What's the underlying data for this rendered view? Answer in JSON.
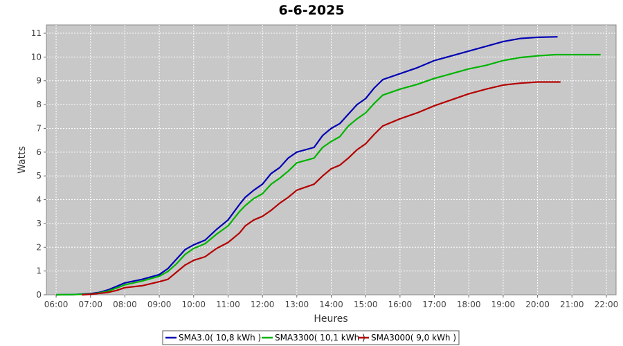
{
  "chart_data": {
    "type": "line",
    "title": "6-6-2025",
    "xlabel": "Heures",
    "ylabel": "Watts",
    "x_ticks": [
      "06:00",
      "07:00",
      "08:00",
      "09:00",
      "10:00",
      "11:00",
      "12:00",
      "13:00",
      "14:00",
      "15:00",
      "16:00",
      "17:00",
      "18:00",
      "19:00",
      "20:00",
      "21:00",
      "22:00"
    ],
    "x_range": [
      "05:43",
      "22:17"
    ],
    "y_ticks": [
      0,
      1,
      2,
      3,
      4,
      5,
      6,
      7,
      8,
      9,
      10,
      11
    ],
    "ylim": [
      0,
      11.35
    ],
    "grid": true,
    "legend_position": "bottom",
    "series": [
      {
        "name": "SMA3.0( 10,8 kWh )",
        "color": "#0000b4",
        "points": [
          [
            "06:00",
            0
          ],
          [
            "06:30",
            0.01
          ],
          [
            "07:00",
            0.05
          ],
          [
            "07:15",
            0.1
          ],
          [
            "07:30",
            0.2
          ],
          [
            "07:45",
            0.35
          ],
          [
            "08:00",
            0.5
          ],
          [
            "08:30",
            0.65
          ],
          [
            "09:00",
            0.85
          ],
          [
            "09:15",
            1.1
          ],
          [
            "09:30",
            1.5
          ],
          [
            "09:45",
            1.9
          ],
          [
            "10:00",
            2.1
          ],
          [
            "10:20",
            2.3
          ],
          [
            "10:40",
            2.75
          ],
          [
            "11:00",
            3.15
          ],
          [
            "11:20",
            3.8
          ],
          [
            "11:30",
            4.1
          ],
          [
            "11:45",
            4.4
          ],
          [
            "12:00",
            4.65
          ],
          [
            "12:15",
            5.1
          ],
          [
            "12:30",
            5.35
          ],
          [
            "12:45",
            5.75
          ],
          [
            "13:00",
            6.0
          ],
          [
            "13:30",
            6.2
          ],
          [
            "13:45",
            6.7
          ],
          [
            "14:00",
            7.0
          ],
          [
            "14:15",
            7.2
          ],
          [
            "14:30",
            7.6
          ],
          [
            "14:45",
            8.0
          ],
          [
            "15:00",
            8.25
          ],
          [
            "15:15",
            8.7
          ],
          [
            "15:30",
            9.05
          ],
          [
            "16:00",
            9.3
          ],
          [
            "16:30",
            9.55
          ],
          [
            "17:00",
            9.85
          ],
          [
            "17:30",
            10.05
          ],
          [
            "18:00",
            10.25
          ],
          [
            "18:30",
            10.45
          ],
          [
            "19:00",
            10.65
          ],
          [
            "19:30",
            10.78
          ],
          [
            "20:00",
            10.83
          ],
          [
            "20:35",
            10.85
          ]
        ]
      },
      {
        "name": "SMA3300( 10,1 kWh )",
        "color": "#00b400",
        "points": [
          [
            "06:00",
            0
          ],
          [
            "06:30",
            0.01
          ],
          [
            "07:00",
            0.03
          ],
          [
            "07:15",
            0.08
          ],
          [
            "07:30",
            0.15
          ],
          [
            "07:45",
            0.28
          ],
          [
            "08:00",
            0.42
          ],
          [
            "08:30",
            0.58
          ],
          [
            "09:00",
            0.78
          ],
          [
            "09:15",
            0.98
          ],
          [
            "09:30",
            1.3
          ],
          [
            "09:45",
            1.7
          ],
          [
            "10:00",
            1.95
          ],
          [
            "10:20",
            2.15
          ],
          [
            "10:40",
            2.55
          ],
          [
            "11:00",
            2.9
          ],
          [
            "11:20",
            3.5
          ],
          [
            "11:30",
            3.75
          ],
          [
            "11:45",
            4.05
          ],
          [
            "12:00",
            4.25
          ],
          [
            "12:15",
            4.65
          ],
          [
            "12:30",
            4.9
          ],
          [
            "12:45",
            5.2
          ],
          [
            "13:00",
            5.55
          ],
          [
            "13:30",
            5.75
          ],
          [
            "13:45",
            6.2
          ],
          [
            "14:00",
            6.45
          ],
          [
            "14:15",
            6.65
          ],
          [
            "14:30",
            7.1
          ],
          [
            "14:45",
            7.4
          ],
          [
            "15:00",
            7.65
          ],
          [
            "15:15",
            8.05
          ],
          [
            "15:30",
            8.4
          ],
          [
            "16:00",
            8.65
          ],
          [
            "16:30",
            8.85
          ],
          [
            "17:00",
            9.1
          ],
          [
            "17:30",
            9.3
          ],
          [
            "18:00",
            9.5
          ],
          [
            "18:30",
            9.65
          ],
          [
            "19:00",
            9.85
          ],
          [
            "19:30",
            9.98
          ],
          [
            "20:00",
            10.05
          ],
          [
            "20:30",
            10.1
          ],
          [
            "21:50",
            10.1
          ]
        ]
      },
      {
        "name": "SMA3000( 9,0 kWh )",
        "color": "#b40000",
        "points": [
          [
            "06:45",
            0
          ],
          [
            "07:00",
            0.02
          ],
          [
            "07:30",
            0.1
          ],
          [
            "07:45",
            0.18
          ],
          [
            "08:00",
            0.3
          ],
          [
            "08:30",
            0.38
          ],
          [
            "09:00",
            0.55
          ],
          [
            "09:15",
            0.65
          ],
          [
            "09:30",
            0.95
          ],
          [
            "09:45",
            1.25
          ],
          [
            "10:00",
            1.45
          ],
          [
            "10:20",
            1.6
          ],
          [
            "10:40",
            1.95
          ],
          [
            "11:00",
            2.2
          ],
          [
            "11:20",
            2.6
          ],
          [
            "11:30",
            2.9
          ],
          [
            "11:45",
            3.15
          ],
          [
            "12:00",
            3.3
          ],
          [
            "12:15",
            3.55
          ],
          [
            "12:30",
            3.85
          ],
          [
            "12:45",
            4.1
          ],
          [
            "13:00",
            4.4
          ],
          [
            "13:30",
            4.65
          ],
          [
            "13:45",
            5.0
          ],
          [
            "14:00",
            5.3
          ],
          [
            "14:15",
            5.45
          ],
          [
            "14:30",
            5.75
          ],
          [
            "14:45",
            6.1
          ],
          [
            "15:00",
            6.35
          ],
          [
            "15:15",
            6.75
          ],
          [
            "15:30",
            7.1
          ],
          [
            "16:00",
            7.4
          ],
          [
            "16:30",
            7.65
          ],
          [
            "17:00",
            7.95
          ],
          [
            "17:30",
            8.2
          ],
          [
            "18:00",
            8.45
          ],
          [
            "18:30",
            8.65
          ],
          [
            "19:00",
            8.82
          ],
          [
            "19:30",
            8.9
          ],
          [
            "20:00",
            8.95
          ],
          [
            "20:40",
            8.95
          ]
        ]
      }
    ]
  }
}
